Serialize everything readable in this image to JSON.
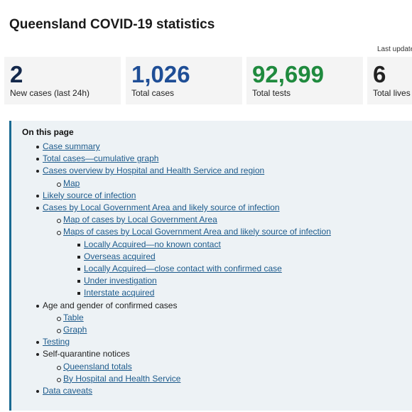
{
  "header": {
    "title": "Queensland COVID-19 statistics",
    "last_updated": "Last updated"
  },
  "stats": [
    {
      "value": "2",
      "label": "New cases (last 24h)",
      "color": "#14284b"
    },
    {
      "value": "1,026",
      "label": "Total cases",
      "color": "#1f4e96"
    },
    {
      "value": "92,699",
      "label": "Total tests",
      "color": "#1f8a3e"
    },
    {
      "value": "6",
      "label": "Total lives l",
      "color": "#222222"
    }
  ],
  "toc": {
    "title": "On this page",
    "items": [
      {
        "text": "Case summary",
        "link": true
      },
      {
        "text": "Total cases—cumulative graph",
        "link": true
      },
      {
        "text": "Cases overview by Hospital and Health Service and region",
        "link": true,
        "children": [
          {
            "text": "Map",
            "link": true
          }
        ]
      },
      {
        "text": "Likely source of infection",
        "link": true
      },
      {
        "text": "Cases by Local Government Area and likely source of infection",
        "link": true,
        "children": [
          {
            "text": "Map of cases by Local Government Area",
            "link": true
          },
          {
            "text": "Maps of cases by Local Government Area and likely source of infection",
            "link": true,
            "children": [
              {
                "text": "Locally Acquired—no known contact",
                "link": true
              },
              {
                "text": "Overseas acquired",
                "link": true
              },
              {
                "text": "Locally Acquired—close contact with confirmed case",
                "link": true
              },
              {
                "text": "Under investigation",
                "link": true
              },
              {
                "text": "Interstate acquired",
                "link": true
              }
            ]
          }
        ]
      },
      {
        "text": "Age and gender of confirmed cases",
        "link": false,
        "children": [
          {
            "text": "Table",
            "link": true
          },
          {
            "text": "Graph",
            "link": true
          }
        ]
      },
      {
        "text": "Testing",
        "link": true
      },
      {
        "text": "Self-quarantine notices",
        "link": false,
        "children": [
          {
            "text": "Queensland totals",
            "link": true
          },
          {
            "text": "By Hospital and Health Service",
            "link": true
          }
        ]
      },
      {
        "text": "Data caveats",
        "link": true
      }
    ]
  }
}
